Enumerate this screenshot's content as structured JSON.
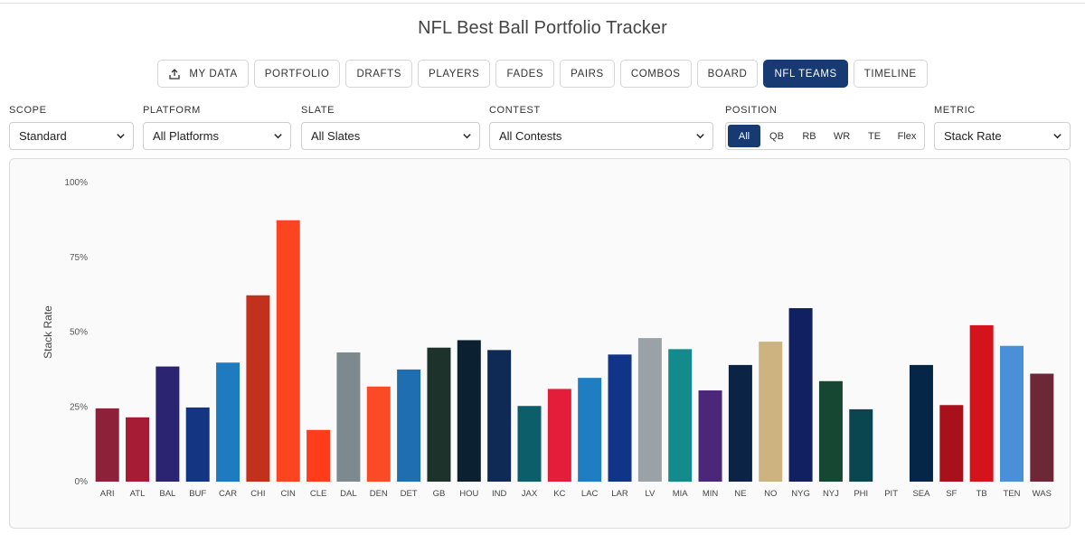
{
  "title": "NFL Best Ball Portfolio Tracker",
  "nav": [
    {
      "label": "MY DATA",
      "icon": "upload-icon",
      "active": false
    },
    {
      "label": "PORTFOLIO",
      "active": false
    },
    {
      "label": "DRAFTS",
      "active": false
    },
    {
      "label": "PLAYERS",
      "active": false
    },
    {
      "label": "FADES",
      "active": false
    },
    {
      "label": "PAIRS",
      "active": false
    },
    {
      "label": "COMBOS",
      "active": false
    },
    {
      "label": "BOARD",
      "active": false
    },
    {
      "label": "NFL TEAMS",
      "active": true
    },
    {
      "label": "TIMELINE",
      "active": false
    }
  ],
  "filters": {
    "scope": {
      "label": "SCOPE",
      "value": "Standard"
    },
    "platform": {
      "label": "PLATFORM",
      "value": "All Platforms"
    },
    "slate": {
      "label": "SLATE",
      "value": "All Slates"
    },
    "contest": {
      "label": "CONTEST",
      "value": "All Contests"
    },
    "position": {
      "label": "POSITION",
      "options": [
        "All",
        "QB",
        "RB",
        "WR",
        "TE",
        "Flex"
      ],
      "selected": "All"
    },
    "metric": {
      "label": "METRIC",
      "value": "Stack Rate"
    }
  },
  "colors": {
    "accent": "#173a72"
  },
  "chart_data": {
    "type": "bar",
    "title": "",
    "xlabel": "",
    "ylabel": "Stack Rate",
    "ylim": [
      0,
      100
    ],
    "yticks": [
      "0%",
      "25%",
      "50%",
      "75%",
      "100%"
    ],
    "ytick_values": [
      0,
      25,
      50,
      75,
      100
    ],
    "grid": false,
    "categories": [
      "ARI",
      "ATL",
      "BAL",
      "BUF",
      "CAR",
      "CHI",
      "CIN",
      "CLE",
      "DAL",
      "DEN",
      "DET",
      "GB",
      "HOU",
      "IND",
      "JAX",
      "KC",
      "LAC",
      "LAR",
      "LV",
      "MIA",
      "MIN",
      "NE",
      "NO",
      "NYG",
      "NYJ",
      "PHI",
      "PIT",
      "SEA",
      "SF",
      "TB",
      "TEN",
      "WAS"
    ],
    "values": [
      24.5,
      21.5,
      38.5,
      24.8,
      39.8,
      62.3,
      87.4,
      17.3,
      43.2,
      31.8,
      37.5,
      44.8,
      47.3,
      44.0,
      25.3,
      31.0,
      34.7,
      42.5,
      48.0,
      44.3,
      30.5,
      39.0,
      46.8,
      58.0,
      33.6,
      24.2,
      0,
      39.0,
      25.6,
      52.3,
      45.4,
      36.1
    ],
    "colors": [
      "#8c2139",
      "#a71c35",
      "#2b2470",
      "#143582",
      "#1f7bc0",
      "#c1311b",
      "#fb4520",
      "#ff3c1c",
      "#7c8a8f",
      "#fb4a26",
      "#1f6fb0",
      "#1e322c",
      "#0b2030",
      "#0e2a55",
      "#0b5e6a",
      "#e31d3a",
      "#1f7ec2",
      "#0f3488",
      "#9aa2a7",
      "#138a8c",
      "#4b2679",
      "#0b2445",
      "#cdb380",
      "#112060",
      "#154733",
      "#094650",
      "#000000",
      "#062647",
      "#a8111c",
      "#d4131c",
      "#4a90d9",
      "#6d2838"
    ]
  }
}
